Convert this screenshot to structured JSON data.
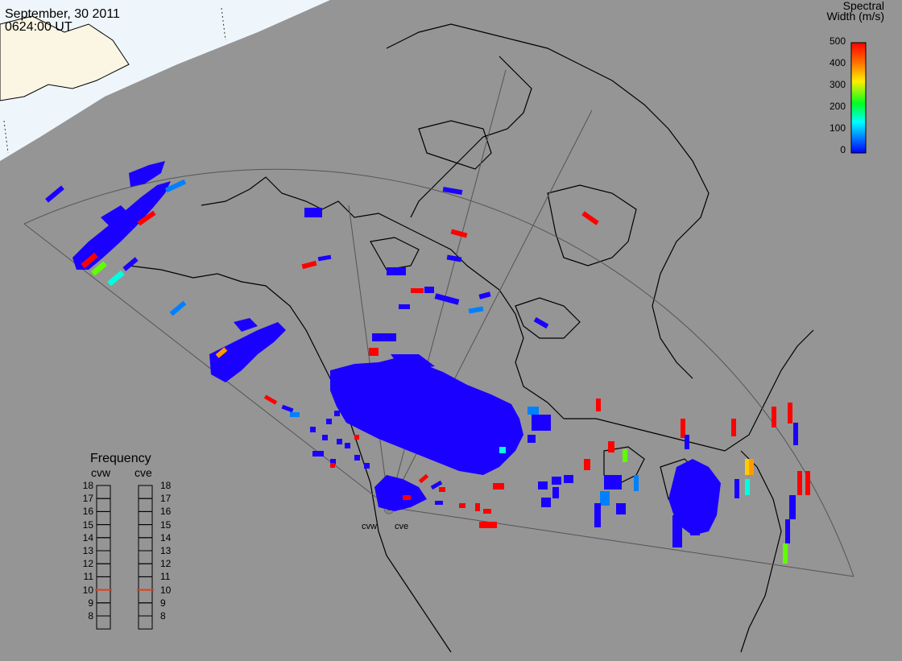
{
  "header": {
    "date": "September, 30 2011",
    "time": "0624:00 UT"
  },
  "colorbar": {
    "title_line1": "Spectral",
    "title_line2": "Width (m/s)",
    "ticks": [
      "500",
      "400",
      "300",
      "200",
      "100",
      "0"
    ],
    "colors": [
      "#ff0000",
      "#ff8000",
      "#ffff00",
      "#00ff00",
      "#00ffff",
      "#0060ff",
      "#0000ff"
    ]
  },
  "frequency_panel": {
    "title": "Frequency",
    "columns": [
      {
        "label": "cvw",
        "selected": "10.5"
      },
      {
        "label": "cve",
        "selected": "10.5"
      }
    ],
    "ticks": [
      "18",
      "17",
      "16",
      "15",
      "14",
      "13",
      "12",
      "11",
      "10",
      "9",
      "8"
    ],
    "marker_color": "#e0401a"
  },
  "radars": [
    {
      "label": "cvw"
    },
    {
      "label": "cve"
    }
  ],
  "colors": {
    "background": "#959595",
    "daylight": "#eef6fb",
    "coastline": "#000000",
    "fov_outline": "#555555",
    "scatter_low": "#1a00ff",
    "scatter_mid": "#0080ff",
    "scatter_high": "#ff0000",
    "scatter_cyan": "#00ffe0",
    "scatter_green": "#60ff00",
    "scatter_yellow": "#ffcc00",
    "scatter_orange": "#ff9900"
  }
}
